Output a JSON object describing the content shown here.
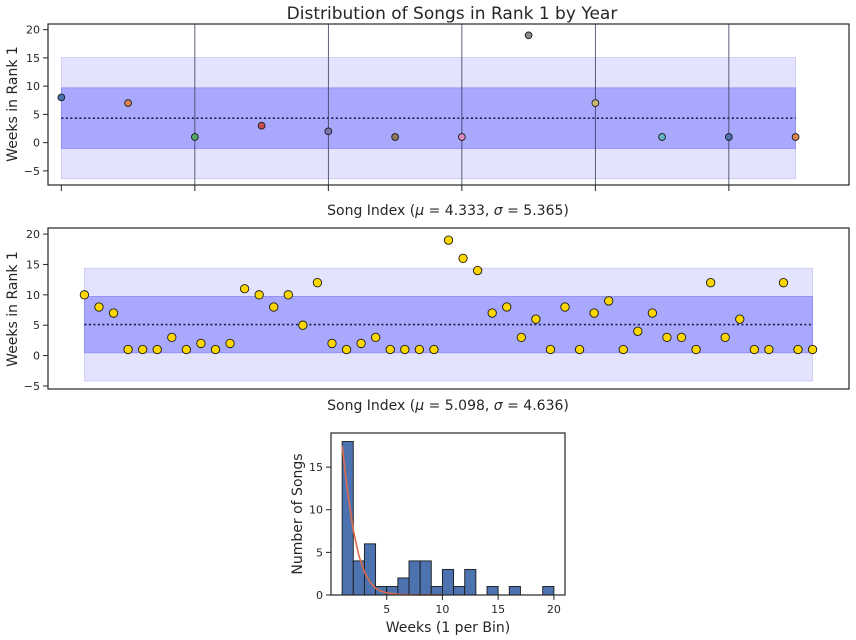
{
  "chart_data": [
    {
      "type": "scatter",
      "title": "Distribution of Songs in Rank 1 by Year",
      "xlabel": "Song Index ($\\mu=4.333, \\sigma=5.365$)",
      "ylabel": "Weeks in Rank 1",
      "ylim": [
        -7.5,
        21
      ],
      "yticks": [
        -5,
        0,
        5,
        10,
        15,
        20
      ],
      "xlim": [
        -0.2,
        11.8
      ],
      "xticks": [
        0,
        2,
        4,
        6,
        8,
        10,
        12
      ],
      "year_dividers": [
        2,
        4,
        6,
        8,
        10
      ],
      "grid": false,
      "mean": 4.333,
      "std": 5.365,
      "band_x": [
        0,
        11
      ],
      "points": [
        {
          "x": 0,
          "y": 8,
          "color": "#4c72b0"
        },
        {
          "x": 1,
          "y": 7,
          "color": "#dd8452"
        },
        {
          "x": 2,
          "y": 1,
          "color": "#55a868"
        },
        {
          "x": 3,
          "y": 3,
          "color": "#c44e52"
        },
        {
          "x": 4,
          "y": 2,
          "color": "#8172b3"
        },
        {
          "x": 5,
          "y": 1,
          "color": "#937860"
        },
        {
          "x": 6,
          "y": 1,
          "color": "#da8bc3"
        },
        {
          "x": 7,
          "y": 19,
          "color": "#8c8c8c"
        },
        {
          "x": 8,
          "y": 7,
          "color": "#ccb974"
        },
        {
          "x": 9,
          "y": 1,
          "color": "#64b5cd"
        },
        {
          "x": 10,
          "y": 1,
          "color": "#4c72b0"
        },
        {
          "x": 11,
          "y": 1,
          "color": "#dd8452"
        }
      ]
    },
    {
      "type": "scatter",
      "xlabel": "Song Index ($\\mu=5.098, \\sigma=4.636$)",
      "ylabel": "Weeks in Rank 1",
      "ylim": [
        -5.5,
        21
      ],
      "yticks": [
        -5,
        0,
        5,
        10,
        15,
        20
      ],
      "xlim": [
        -2.5,
        52.5
      ],
      "grid": false,
      "mean": 5.098,
      "std": 4.636,
      "band_x": [
        0,
        50
      ],
      "point_color": "#ffd700",
      "y": [
        10,
        8,
        7,
        1,
        1,
        1,
        3,
        1,
        2,
        1,
        2,
        11,
        10,
        8,
        10,
        5,
        12,
        2,
        1,
        2,
        3,
        1,
        1,
        1,
        1,
        19,
        16,
        14,
        7,
        8,
        3,
        6,
        1,
        8,
        1,
        7,
        9,
        1,
        4,
        7,
        3,
        3,
        1,
        12,
        3,
        6,
        1,
        1,
        12,
        1,
        1
      ]
    },
    {
      "type": "bar",
      "subtype": "histogram",
      "xlabel": "Weeks (1 per Bin)",
      "ylabel": "Number of Songs",
      "xlim": [
        0,
        21
      ],
      "ylim": [
        0,
        19
      ],
      "xticks": [
        5,
        10,
        15,
        20
      ],
      "yticks": [
        0,
        5,
        10,
        15
      ],
      "bin_width": 1,
      "bin_starts": [
        1,
        2,
        3,
        4,
        5,
        6,
        7,
        8,
        9,
        10,
        11,
        12,
        13,
        14,
        15,
        16,
        17,
        18,
        19
      ],
      "counts": [
        18,
        4,
        6,
        1,
        1,
        2,
        4,
        4,
        1,
        3,
        1,
        3,
        0,
        1,
        0,
        1,
        0,
        0,
        1
      ],
      "bar_color": "#4c72b0",
      "fit_color": "#dd6b4a",
      "fit_curve": {
        "x": [
          1,
          1.5,
          2,
          2.5,
          3,
          3.5,
          4,
          4.5,
          5,
          6,
          7,
          8,
          9,
          10
        ],
        "y": [
          17.5,
          12,
          7.6,
          4.6,
          2.7,
          1.5,
          0.8,
          0.45,
          0.25,
          0.08,
          0.02,
          0.0,
          0.0,
          0.0
        ]
      }
    }
  ],
  "colors": {
    "band_outer": "#e3e3fd",
    "band_outer_edge": "#c9c9f7",
    "band_inner": "#a8a8fc",
    "band_inner_edge": "#8d8df0",
    "mean_line": "#1a1a4d",
    "divider": "#3a3a5a"
  }
}
